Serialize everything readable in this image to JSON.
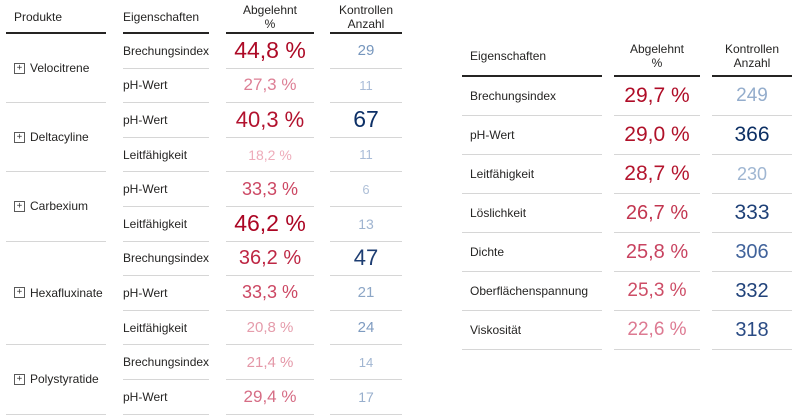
{
  "icons": {
    "expand_glyph": "+"
  },
  "colors": {
    "header_border": "#252423",
    "row_border": "#d6d6d6",
    "pct_scale_dark": "#ab0523",
    "pct_scale_light": "#eeacba",
    "count_scale_dark": "#0b2e63",
    "count_scale_light": "#afc0d8"
  },
  "left_table": {
    "headers": {
      "produkte": "Produkte",
      "eigenschaften": "Eigenschaften",
      "abgelehnt_line1": "Abgelehnt",
      "abgelehnt_line2": "%",
      "kontrollen_line1": "Kontrollen",
      "kontrollen_line2": "Anzahl"
    },
    "groups": [
      {
        "product": "Velocitrene",
        "rows": [
          {
            "eigenschaft": "Brechungsindex",
            "abgelehnt": "44,8 %",
            "pct_style": "color:#ad0a26;font-size:23px",
            "kontrollen": "29",
            "cnt_style": "color:#7696bd;font-size:15px"
          },
          {
            "eigenschaft": "pH-Wert",
            "abgelehnt": "27,3 %",
            "pct_style": "color:#dd7f95;font-size:17px",
            "kontrollen": "11",
            "cnt_style": "color:#a9bcd8;font-size:13px"
          }
        ]
      },
      {
        "product": "Deltacyline",
        "rows": [
          {
            "eigenschaft": "pH-Wert",
            "abgelehnt": "40,3 %",
            "pct_style": "color:#b2122e;font-size:22px",
            "kontrollen": "67",
            "cnt_style": "color:#0c2f66;font-size:23px"
          },
          {
            "eigenschaft": "Leitfähigkeit",
            "abgelehnt": "18,2 %",
            "pct_style": "color:#eeacba;font-size:14px",
            "kontrollen": "11",
            "cnt_style": "color:#a9bcd8;font-size:13px"
          }
        ]
      },
      {
        "product": "Carbexium",
        "rows": [
          {
            "eigenschaft": "pH-Wert",
            "abgelehnt": "33,3 %",
            "pct_style": "color:#cc4763;font-size:18px",
            "kontrollen": "6",
            "cnt_style": "color:#afc0d8;font-size:13px"
          },
          {
            "eigenschaft": "Leitfähigkeit",
            "abgelehnt": "46,2 %",
            "pct_style": "color:#ab0523;font-size:23px",
            "kontrollen": "13",
            "cnt_style": "color:#9fb4d0;font-size:14px"
          }
        ]
      },
      {
        "product": "Hexafluxinate",
        "rows": [
          {
            "eigenschaft": "Brechungsindex",
            "abgelehnt": "36,2 %",
            "pct_style": "color:#be2744;font-size:20px",
            "kontrollen": "47",
            "cnt_style": "color:#1d3d72;font-size:22px"
          },
          {
            "eigenschaft": "pH-Wert",
            "abgelehnt": "33,3 %",
            "pct_style": "color:#cc4763;font-size:18px",
            "kontrollen": "21",
            "cnt_style": "color:#8ca6c6;font-size:15px"
          },
          {
            "eigenschaft": "Leitfähigkeit",
            "abgelehnt": "20,8 %",
            "pct_style": "color:#e59cab;font-size:15px",
            "kontrollen": "24",
            "cnt_style": "color:#7e9bc0;font-size:15px"
          }
        ]
      },
      {
        "product": "Polystyratide",
        "rows": [
          {
            "eigenschaft": "Brechungsindex",
            "abgelehnt": "21,4 %",
            "pct_style": "color:#e497a7;font-size:15px",
            "kontrollen": "14",
            "cnt_style": "color:#a1b6d2;font-size:13px"
          },
          {
            "eigenschaft": "pH-Wert",
            "abgelehnt": "29,4 %",
            "pct_style": "color:#d66d85;font-size:17px",
            "kontrollen": "17",
            "cnt_style": "color:#98afcd;font-size:14px"
          }
        ]
      }
    ]
  },
  "right_table": {
    "headers": {
      "eigenschaften": "Eigenschaften",
      "abgelehnt_line1": "Abgelehnt",
      "abgelehnt_line2": "%",
      "kontrollen_line1": "Kontrollen",
      "kontrollen_line2": "Anzahl"
    },
    "rows": [
      {
        "eigenschaft": "Brechungsindex",
        "abgelehnt": "29,7 %",
        "pct_style": "color:#af0c27;font-size:21px",
        "kontrollen": "249",
        "cnt_style": "color:#94adcc;font-size:19px"
      },
      {
        "eigenschaft": "pH-Wert",
        "abgelehnt": "29,0 %",
        "pct_style": "color:#b01129;font-size:21px",
        "kontrollen": "366",
        "cnt_style": "color:#0b2e63;font-size:21px"
      },
      {
        "eigenschaft": "Leitfähigkeit",
        "abgelehnt": "28,7 %",
        "pct_style": "color:#b4152e;font-size:21px",
        "kontrollen": "230",
        "cnt_style": "color:#9fb6d2;font-size:18px"
      },
      {
        "eigenschaft": "Löslichkeit",
        "abgelehnt": "26,7 %",
        "pct_style": "color:#c23650;font-size:20px",
        "kontrollen": "333",
        "cnt_style": "color:#1e4077;font-size:21px"
      },
      {
        "eigenschaft": "Dichte",
        "abgelehnt": "25,8 %",
        "pct_style": "color:#c84360;font-size:20px",
        "kontrollen": "306",
        "cnt_style": "color:#41639b;font-size:20px"
      },
      {
        "eigenschaft": "Oberflächenspannung",
        "abgelehnt": "25,3 %",
        "pct_style": "color:#cd4d66;font-size:19px",
        "kontrollen": "332",
        "cnt_style": "color:#20427a;font-size:20px"
      },
      {
        "eigenschaft": "Viskosität",
        "abgelehnt": "22,6 %",
        "pct_style": "color:#dd7a92;font-size:19px",
        "kontrollen": "318",
        "cnt_style": "color:#2a4b84;font-size:20px"
      }
    ]
  }
}
